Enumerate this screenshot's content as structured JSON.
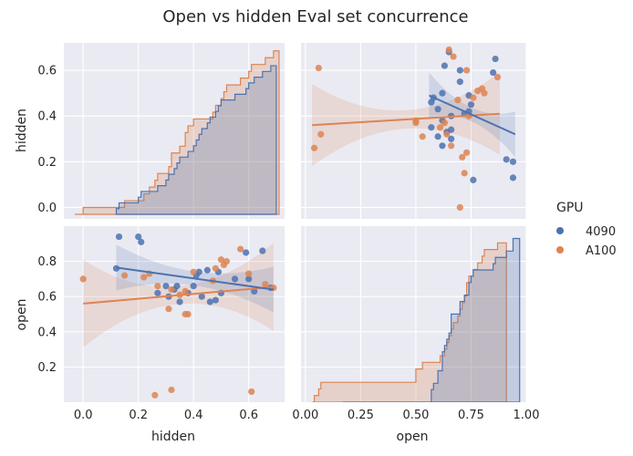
{
  "title": "Open vs hidden Eval set concurrence",
  "legend": {
    "title": "GPU",
    "entries": [
      {
        "name": "4090",
        "color": "#4c72b0"
      },
      {
        "name": "A100",
        "color": "#dd8452"
      }
    ]
  },
  "chart_data": {
    "type": "pairplot",
    "variables": [
      "hidden",
      "open"
    ],
    "hue": "GPU",
    "axes": {
      "hidden": {
        "label": "hidden",
        "lim": [
          -0.07,
          0.73
        ],
        "ticks": [
          0.0,
          0.2,
          0.4,
          0.6
        ],
        "tick_labels": [
          "0.0",
          "0.2",
          "0.4",
          "0.6"
        ]
      },
      "open_x": {
        "label": "open",
        "lim": [
          -0.02,
          1.0
        ],
        "ticks": [
          0.0,
          0.25,
          0.5,
          0.75,
          1.0
        ],
        "tick_labels": [
          "0.00",
          "0.25",
          "0.50",
          "0.75",
          "1.00"
        ]
      },
      "open_y": {
        "label": "open",
        "lim": [
          0.0,
          1.0
        ],
        "ticks": [
          0.2,
          0.4,
          0.6,
          0.8
        ],
        "tick_labels": [
          "0.2",
          "0.4",
          "0.6",
          "0.8"
        ]
      },
      "hidden_y": {
        "label": "hidden",
        "lim": [
          -0.05,
          0.72
        ],
        "ticks": [
          0.0,
          0.2,
          0.4,
          0.6
        ],
        "tick_labels": [
          "0.0",
          "0.2",
          "0.4",
          "0.6"
        ]
      }
    },
    "series": [
      {
        "name": "4090",
        "color": "#4c72b0",
        "points": [
          {
            "open": 0.63,
            "hidden": 0.62
          },
          {
            "open": 0.65,
            "hidden": 0.68
          },
          {
            "open": 0.86,
            "hidden": 0.65
          },
          {
            "open": 0.85,
            "hidden": 0.59
          },
          {
            "open": 0.7,
            "hidden": 0.6
          },
          {
            "open": 0.7,
            "hidden": 0.55
          },
          {
            "open": 0.58,
            "hidden": 0.48
          },
          {
            "open": 0.57,
            "hidden": 0.46
          },
          {
            "open": 0.6,
            "hidden": 0.43
          },
          {
            "open": 0.62,
            "hidden": 0.5
          },
          {
            "open": 0.74,
            "hidden": 0.49
          },
          {
            "open": 0.75,
            "hidden": 0.45
          },
          {
            "open": 0.74,
            "hidden": 0.42
          },
          {
            "open": 0.72,
            "hidden": 0.41
          },
          {
            "open": 0.66,
            "hidden": 0.4
          },
          {
            "open": 0.62,
            "hidden": 0.38
          },
          {
            "open": 0.57,
            "hidden": 0.35
          },
          {
            "open": 0.64,
            "hidden": 0.33
          },
          {
            "open": 0.66,
            "hidden": 0.34
          },
          {
            "open": 0.6,
            "hidden": 0.31
          },
          {
            "open": 0.62,
            "hidden": 0.27
          },
          {
            "open": 0.66,
            "hidden": 0.3
          },
          {
            "open": 0.91,
            "hidden": 0.21
          },
          {
            "open": 0.94,
            "hidden": 0.2
          },
          {
            "open": 0.94,
            "hidden": 0.13
          },
          {
            "open": 0.76,
            "hidden": 0.12
          }
        ]
      },
      {
        "name": "A100",
        "color": "#dd8452",
        "points": [
          {
            "open": 0.65,
            "hidden": 0.69
          },
          {
            "open": 0.67,
            "hidden": 0.66
          },
          {
            "open": 0.06,
            "hidden": 0.61
          },
          {
            "open": 0.73,
            "hidden": 0.6
          },
          {
            "open": 0.87,
            "hidden": 0.57
          },
          {
            "open": 0.78,
            "hidden": 0.51
          },
          {
            "open": 0.81,
            "hidden": 0.5
          },
          {
            "open": 0.8,
            "hidden": 0.52
          },
          {
            "open": 0.76,
            "hidden": 0.48
          },
          {
            "open": 0.69,
            "hidden": 0.47
          },
          {
            "open": 0.74,
            "hidden": 0.4
          },
          {
            "open": 0.63,
            "hidden": 0.37
          },
          {
            "open": 0.5,
            "hidden": 0.38
          },
          {
            "open": 0.5,
            "hidden": 0.37
          },
          {
            "open": 0.61,
            "hidden": 0.35
          },
          {
            "open": 0.07,
            "hidden": 0.32
          },
          {
            "open": 0.53,
            "hidden": 0.31
          },
          {
            "open": 0.64,
            "hidden": 0.32
          },
          {
            "open": 0.66,
            "hidden": 0.27
          },
          {
            "open": 0.04,
            "hidden": 0.26
          },
          {
            "open": 0.73,
            "hidden": 0.24
          },
          {
            "open": 0.71,
            "hidden": 0.22
          },
          {
            "open": 0.72,
            "hidden": 0.15
          },
          {
            "open": 0.7,
            "hidden": 0.0
          }
        ]
      }
    ],
    "regression": [
      {
        "name": "4090",
        "panel": "hidden~open",
        "x": [
          0.56,
          0.95
        ],
        "y": [
          0.49,
          0.32
        ]
      },
      {
        "name": "A100",
        "panel": "hidden~open",
        "x": [
          0.03,
          0.88
        ],
        "y": [
          0.36,
          0.41
        ]
      },
      {
        "name": "4090",
        "panel": "open~hidden",
        "x": [
          0.12,
          0.69
        ],
        "y": [
          0.765,
          0.64
        ]
      },
      {
        "name": "A100",
        "panel": "open~hidden",
        "x": [
          0.0,
          0.69
        ],
        "y": [
          0.56,
          0.655
        ]
      }
    ],
    "ecdf_hidden": [
      {
        "name": "4090",
        "start": 0.12,
        "end": 0.7,
        "max": 0.62
      },
      {
        "name": "A100",
        "start": -0.03,
        "end": 0.71,
        "max": 0.685
      }
    ],
    "ecdf_open": [
      {
        "name": "4090",
        "start": 0.17,
        "end": 0.97,
        "max": 0.93
      },
      {
        "name": "A100",
        "start": 0.03,
        "end": 0.91,
        "max": 0.905
      }
    ]
  }
}
